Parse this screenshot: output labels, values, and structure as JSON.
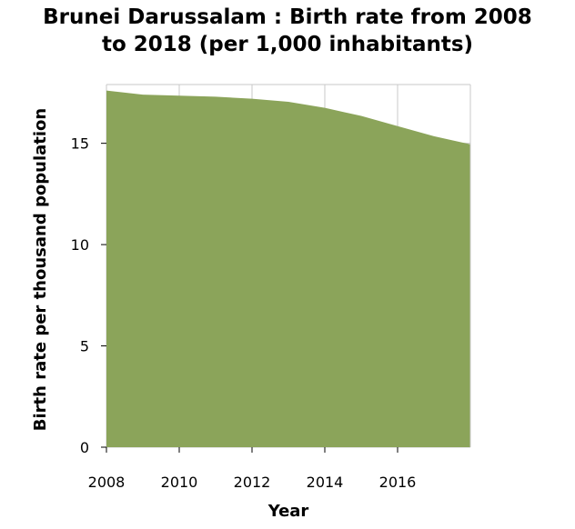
{
  "title": {
    "line1": "Brunei Darussalam : Birth rate from 2008",
    "line2": "to 2018 (per 1,000 inhabitants)"
  },
  "colors": {
    "area_fill": "#8ba45a",
    "grid": "#c8c8c8",
    "axis": "#000000"
  },
  "chart_data": {
    "type": "area",
    "title": "Brunei Darussalam : Birth rate from 2008 to 2018 (per 1,000 inhabitants)",
    "xlabel": "Year",
    "ylabel": "Birth rate per thousand population",
    "x": [
      2008,
      2009,
      2010,
      2011,
      2012,
      2013,
      2014,
      2015,
      2016,
      2017,
      2018
    ],
    "values": [
      17.6,
      17.4,
      17.35,
      17.3,
      17.2,
      17.05,
      16.75,
      16.35,
      15.85,
      15.35,
      14.95
    ],
    "xlim": [
      2008,
      2018
    ],
    "ylim": [
      0,
      17.9
    ],
    "x_ticks": [
      2008,
      2010,
      2012,
      2014,
      2016
    ],
    "x_tick_labels": [
      "2008",
      "2010",
      "2012",
      "2014",
      "2016"
    ],
    "y_ticks": [
      0,
      5,
      10,
      15
    ],
    "y_tick_labels": [
      "0",
      "5",
      "10",
      "15"
    ],
    "grid": true,
    "legend": "none"
  }
}
